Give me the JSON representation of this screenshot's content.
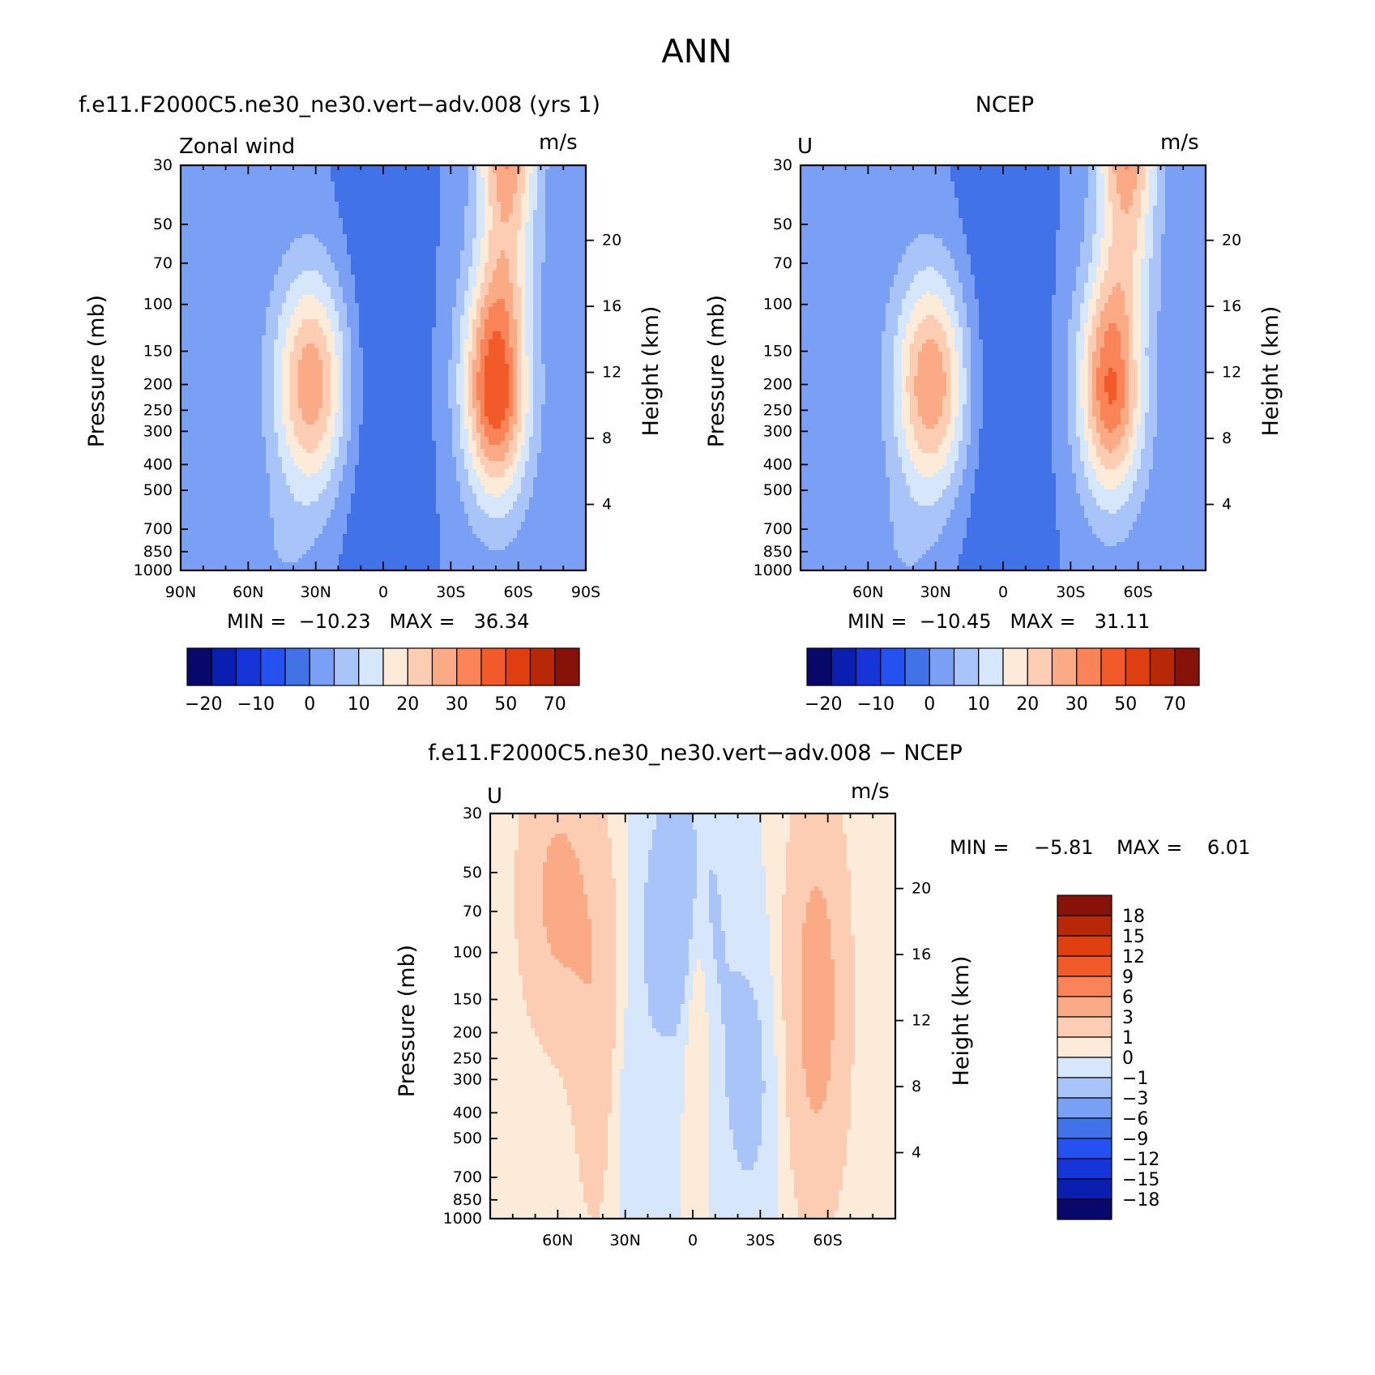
{
  "figure_title": "ANN",
  "colors": {
    "ramp": [
      "#08086b",
      "#0a1fb0",
      "#1535d8",
      "#2451ef",
      "#4272e8",
      "#7aa0f5",
      "#a9c4f8",
      "#d7e7fb",
      "#fdebd9",
      "#fcccb3",
      "#fbaa86",
      "#fa8457",
      "#f35a2a",
      "#de3e10",
      "#b82806",
      "#87120a"
    ]
  },
  "panels": [
    {
      "title": "f.e11.F2000C5.ne30_ne30.vert−adv.008 (yrs 1)",
      "left_label": "Zonal wind",
      "units": "m/s",
      "ylabel": "Pressure (mb)",
      "ylabel_right": "Height (km)",
      "stats": "MIN =  −10.23   MAX =   36.34",
      "chart_data": {
        "type": "contour",
        "field": "zonal wind",
        "x_ticks": [
          "90N",
          "60N",
          "30N",
          "0",
          "30S",
          "60S",
          "90S"
        ],
        "x_tick_values": [
          90,
          60,
          30,
          0,
          -30,
          -60,
          -90
        ],
        "y_ticks": [
          "30",
          "50",
          "70",
          "100",
          "150",
          "200",
          "250",
          "300",
          "400",
          "500",
          "700",
          "850",
          "1000"
        ],
        "y_tick_values": [
          30,
          50,
          70,
          100,
          150,
          200,
          250,
          300,
          400,
          500,
          700,
          850,
          1000
        ],
        "y_right_ticks": [
          "20",
          "16",
          "12",
          "8",
          "4"
        ],
        "y_right_tick_values": [
          20,
          16,
          12,
          8,
          4
        ],
        "min": -10.23,
        "max": 36.34,
        "jets": [
          {
            "lat": 32,
            "p": 200,
            "max": 24
          },
          {
            "lat": -50,
            "p": 200,
            "max": 36
          }
        ],
        "colorbar": {
          "orientation": "horizontal",
          "labels": [
            "−20",
            "−10",
            "0",
            "10",
            "20",
            "30",
            "50",
            "70"
          ]
        }
      }
    },
    {
      "title": "NCEP",
      "left_label": "U",
      "units": "m/s",
      "ylabel": "Pressure (mb)",
      "ylabel_right": "Height (km)",
      "stats": "MIN =  −10.45   MAX =   31.11",
      "chart_data": {
        "type": "contour",
        "field": "zonal wind",
        "x_ticks": [
          "60N",
          "30N",
          "0",
          "30S",
          "60S"
        ],
        "x_tick_values": [
          60,
          30,
          0,
          -30,
          -60
        ],
        "y_ticks": [
          "30",
          "50",
          "70",
          "100",
          "150",
          "200",
          "250",
          "300",
          "400",
          "500",
          "700",
          "850",
          "1000"
        ],
        "y_tick_values": [
          30,
          50,
          70,
          100,
          150,
          200,
          250,
          300,
          400,
          500,
          700,
          850,
          1000
        ],
        "y_right_ticks": [
          "20",
          "16",
          "12",
          "8",
          "4"
        ],
        "y_right_tick_values": [
          20,
          16,
          12,
          8,
          4
        ],
        "min": -10.45,
        "max": 31.11,
        "jets": [
          {
            "lat": 32,
            "p": 200,
            "max": 25
          },
          {
            "lat": -48,
            "p": 200,
            "max": 31
          }
        ],
        "colorbar": {
          "orientation": "horizontal",
          "labels": [
            "−20",
            "−10",
            "0",
            "10",
            "20",
            "30",
            "50",
            "70"
          ]
        }
      }
    },
    {
      "title": "f.e11.F2000C5.ne30_ne30.vert−adv.008 − NCEP",
      "left_label": "U",
      "units": "m/s",
      "ylabel": "Pressure (mb)",
      "ylabel_right": "Height (km)",
      "stats_min": "MIN =    −5.81",
      "stats_max": "MAX =    6.01",
      "chart_data": {
        "type": "contour",
        "field": "zonal wind difference",
        "x_ticks": [
          "60N",
          "30N",
          "0",
          "30S",
          "60S"
        ],
        "x_tick_values": [
          60,
          30,
          0,
          -30,
          -60
        ],
        "y_ticks": [
          "30",
          "50",
          "70",
          "100",
          "150",
          "200",
          "250",
          "300",
          "400",
          "500",
          "700",
          "850",
          "1000"
        ],
        "y_tick_values": [
          30,
          50,
          70,
          100,
          150,
          200,
          250,
          300,
          400,
          500,
          700,
          850,
          1000
        ],
        "y_right_ticks": [
          "20",
          "16",
          "12",
          "8",
          "4"
        ],
        "y_right_tick_values": [
          20,
          16,
          12,
          8,
          4
        ],
        "min": -5.81,
        "max": 6.01,
        "colorbar": {
          "orientation": "vertical",
          "labels": [
            "18",
            "15",
            "12",
            "9",
            "6",
            "3",
            "1",
            "0",
            "−1",
            "−3",
            "−6",
            "−9",
            "−12",
            "−15",
            "−18"
          ]
        }
      }
    }
  ]
}
